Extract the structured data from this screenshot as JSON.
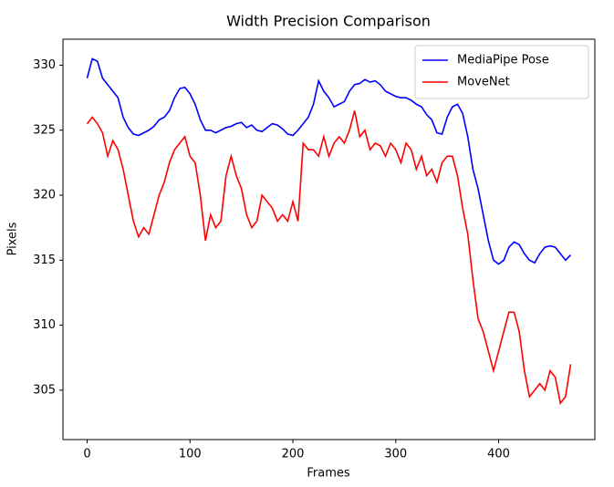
{
  "chart_data": {
    "type": "line",
    "title": "Width Precision Comparison",
    "x_label": "Frames",
    "y_label": "Pixels",
    "x": [
      0,
      5,
      10,
      15,
      20,
      25,
      30,
      35,
      40,
      45,
      50,
      55,
      60,
      65,
      70,
      75,
      80,
      85,
      90,
      95,
      100,
      105,
      110,
      115,
      120,
      125,
      130,
      135,
      140,
      145,
      150,
      155,
      160,
      165,
      170,
      175,
      180,
      185,
      190,
      195,
      200,
      205,
      210,
      215,
      220,
      225,
      230,
      235,
      240,
      245,
      250,
      255,
      260,
      265,
      270,
      275,
      280,
      285,
      290,
      295,
      300,
      305,
      310,
      315,
      320,
      325,
      330,
      335,
      340,
      345,
      350,
      355,
      360,
      365,
      370,
      375,
      380,
      385,
      390,
      395,
      400,
      405,
      410,
      415,
      420,
      425,
      430,
      435,
      440,
      445,
      450,
      455,
      460,
      465,
      470
    ],
    "series": [
      {
        "name": "MediaPipe Pose",
        "color": "#0000ff",
        "values": [
          329.0,
          330.5,
          330.3,
          329.0,
          328.5,
          328.0,
          327.5,
          326.0,
          325.2,
          324.7,
          324.6,
          324.8,
          325.0,
          325.3,
          325.8,
          326.0,
          326.5,
          327.5,
          328.2,
          328.3,
          327.8,
          327.0,
          325.8,
          325.0,
          325.0,
          324.8,
          325.0,
          325.2,
          325.3,
          325.5,
          325.6,
          325.2,
          325.4,
          325.0,
          324.9,
          325.2,
          325.5,
          325.4,
          325.1,
          324.7,
          324.6,
          325.0,
          325.5,
          326.0,
          327.0,
          328.8,
          328.0,
          327.5,
          326.8,
          327.0,
          327.2,
          328.0,
          328.5,
          328.6,
          328.9,
          328.7,
          328.8,
          328.5,
          328.0,
          327.8,
          327.6,
          327.5,
          327.5,
          327.3,
          327.0,
          326.8,
          326.2,
          325.8,
          324.8,
          324.7,
          326.0,
          326.8,
          327.0,
          326.3,
          324.5,
          322.0,
          320.5,
          318.5,
          316.5,
          315.0,
          314.7,
          315.0,
          316.0,
          316.4,
          316.2,
          315.5,
          315.0,
          314.8,
          315.5,
          316.0,
          316.1,
          316.0,
          315.5,
          315.0,
          315.4
        ]
      },
      {
        "name": "MoveNet",
        "color": "#ff0000",
        "values": [
          325.5,
          326.0,
          325.5,
          324.8,
          323.0,
          324.2,
          323.5,
          322.0,
          320.0,
          318.0,
          316.8,
          317.5,
          317.0,
          318.5,
          320.0,
          321.0,
          322.5,
          323.5,
          324.0,
          324.5,
          323.0,
          322.5,
          320.0,
          316.5,
          318.5,
          317.5,
          318.0,
          321.5,
          323.0,
          321.5,
          320.5,
          318.5,
          317.5,
          318.0,
          320.0,
          319.5,
          319.0,
          318.0,
          318.5,
          318.0,
          319.5,
          318.0,
          324.0,
          323.5,
          323.5,
          323.0,
          324.5,
          323.0,
          324.0,
          324.5,
          324.0,
          325.0,
          326.5,
          324.5,
          325.0,
          323.5,
          324.0,
          323.8,
          323.0,
          324.0,
          323.5,
          322.5,
          324.0,
          323.5,
          322.0,
          323.0,
          321.5,
          322.0,
          321.0,
          322.5,
          323.0,
          323.0,
          321.5,
          319.0,
          317.0,
          313.5,
          310.5,
          309.5,
          308.0,
          306.5,
          308.0,
          309.5,
          311.0,
          311.0,
          309.5,
          306.5,
          304.5,
          305.0,
          305.5,
          305.0,
          306.5,
          306.0,
          304.0,
          304.5,
          307.0
        ]
      }
    ],
    "xlim": [
      -23.5,
      493.5
    ],
    "ylim": [
      301.2,
      332.0
    ],
    "xticks": [
      0,
      100,
      200,
      300,
      400
    ],
    "yticks": [
      305,
      310,
      315,
      320,
      325,
      330
    ],
    "legend": "upper right"
  }
}
